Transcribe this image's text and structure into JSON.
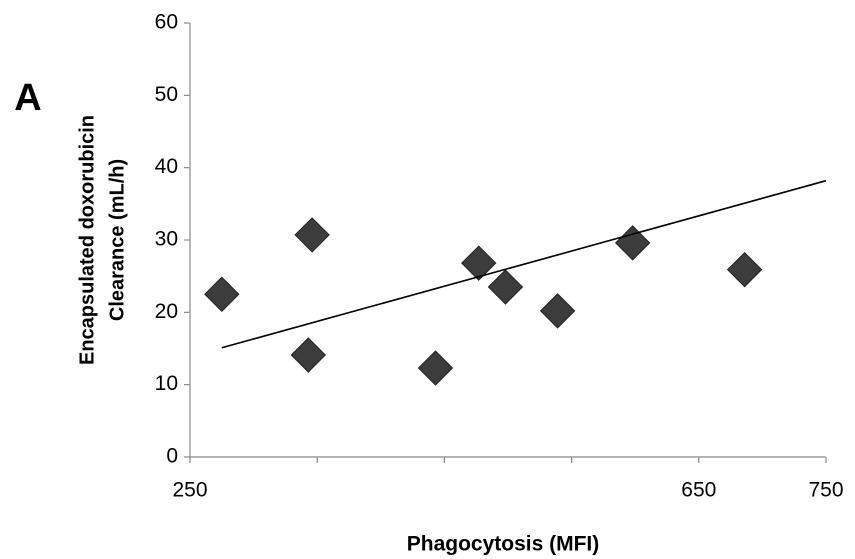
{
  "chart_data": {
    "type": "scatter",
    "panel_label": "A",
    "xlabel": "Phagocytosis (MFI)",
    "ylabel": [
      "Encapsulated doxorubicin",
      "Clearance (mL/h)"
    ],
    "x": [
      275,
      346,
      343,
      443,
      477,
      498,
      539,
      598,
      686
    ],
    "values": [
      22.5,
      30.7,
      14.1,
      12.3,
      26.8,
      23.5,
      20.2,
      29.6,
      25.9
    ],
    "color": "#3c3c3c",
    "trendline": {
      "x": [
        275,
        750
      ],
      "y": [
        15.1,
        38.2
      ],
      "color": "#000000"
    },
    "xlim": [
      250,
      750
    ],
    "xticks": [
      250,
      {
        "value": 350,
        "label": null
      },
      {
        "value": 450,
        "label": null
      },
      {
        "value": 550,
        "label": null
      },
      650,
      750
    ],
    "ylim": [
      0,
      60
    ],
    "yticks": [
      0,
      10,
      20,
      30,
      40,
      50,
      60
    ],
    "grid": false
  }
}
